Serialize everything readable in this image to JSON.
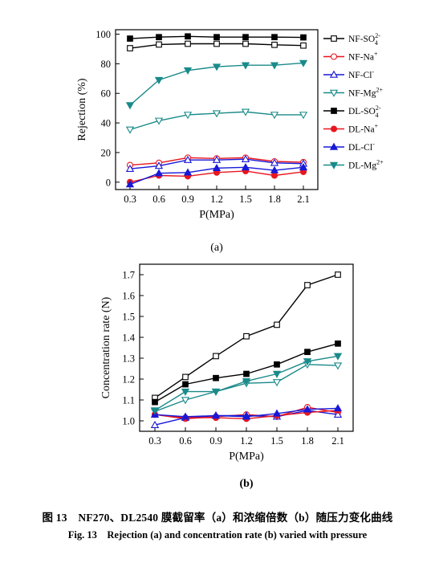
{
  "chart_data": [
    {
      "type": "line",
      "panel_label": "(a)",
      "xlabel": "P(MPa)",
      "ylabel": "Rejection (%)",
      "x": [
        0.3,
        0.6,
        0.9,
        1.2,
        1.5,
        1.8,
        2.1
      ],
      "x_ticks": [
        "0.3",
        "0.6",
        "0.9",
        "1.2",
        "1.5",
        "1.8",
        "2.1"
      ],
      "xlim": [
        0.15,
        2.25
      ],
      "ylim": [
        -5,
        103
      ],
      "y_ticks": [
        "0",
        "20",
        "40",
        "60",
        "80",
        "100"
      ],
      "legend_position": "right-outside",
      "series": [
        {
          "name": "NF-SO",
          "sup": "2-",
          "sub": "4",
          "color": "#000000",
          "marker": "square",
          "filled": false,
          "values": [
            90.5,
            93.0,
            93.5,
            93.5,
            93.5,
            92.8,
            92.3
          ]
        },
        {
          "name": "NF-Na",
          "sup": "+",
          "sub": "",
          "color": "#e8171f",
          "marker": "circle",
          "filled": false,
          "values": [
            11.5,
            13.0,
            16.5,
            16.0,
            16.5,
            14.0,
            13.5
          ]
        },
        {
          "name": "NF-Cl",
          "sup": "-",
          "sub": "",
          "color": "#1818d8",
          "marker": "triangle-up",
          "filled": false,
          "values": [
            9.0,
            11.0,
            15.0,
            15.0,
            15.5,
            13.0,
            12.5
          ]
        },
        {
          "name": "NF-Mg",
          "sup": "2+",
          "sub": "",
          "color": "#1a8a8a",
          "marker": "triangle-down",
          "filled": false,
          "values": [
            35.5,
            41.5,
            45.5,
            46.5,
            47.5,
            45.5,
            45.5
          ]
        },
        {
          "name": "DL-SO",
          "sup": "2-",
          "sub": "4",
          "color": "#000000",
          "marker": "square",
          "filled": true,
          "values": [
            97.0,
            98.0,
            98.5,
            98.0,
            98.0,
            98.0,
            97.8
          ]
        },
        {
          "name": "DL-Na",
          "sup": "+",
          "sub": "",
          "color": "#e8171f",
          "marker": "circle",
          "filled": true,
          "values": [
            0.0,
            4.5,
            4.0,
            6.5,
            7.5,
            4.5,
            7.0
          ]
        },
        {
          "name": "DL-Cl",
          "sup": "-",
          "sub": "",
          "color": "#1818d8",
          "marker": "triangle-up",
          "filled": true,
          "values": [
            -1.5,
            6.0,
            6.5,
            9.5,
            10.0,
            8.0,
            10.0
          ]
        },
        {
          "name": "DL-Mg",
          "sup": "2+",
          "sub": "",
          "color": "#1a8a8a",
          "marker": "triangle-down",
          "filled": true,
          "values": [
            52.0,
            69.0,
            75.5,
            78.0,
            79.0,
            79.0,
            80.5
          ]
        }
      ]
    },
    {
      "type": "line",
      "panel_label": "(b)",
      "xlabel": "P(MPa)",
      "ylabel": "Concentration rate (N)",
      "x": [
        0.3,
        0.6,
        0.9,
        1.2,
        1.5,
        1.8,
        2.1
      ],
      "x_ticks": [
        "0.3",
        "0.6",
        "0.9",
        "1.2",
        "1.5",
        "1.8",
        "2.1"
      ],
      "xlim": [
        0.15,
        2.25
      ],
      "ylim": [
        0.95,
        1.75
      ],
      "y_ticks": [
        "1.0",
        "1.1",
        "1.2",
        "1.3",
        "1.4",
        "1.5",
        "1.6",
        "1.7"
      ],
      "series": [
        {
          "color": "#000000",
          "marker": "square",
          "filled": false,
          "values": [
            1.11,
            1.21,
            1.31,
            1.405,
            1.46,
            1.65,
            1.7
          ]
        },
        {
          "color": "#e8171f",
          "marker": "circle",
          "filled": false,
          "values": [
            1.03,
            1.01,
            1.02,
            1.03,
            1.02,
            1.065,
            1.04
          ]
        },
        {
          "color": "#1818d8",
          "marker": "triangle-up",
          "filled": false,
          "values": [
            0.98,
            1.015,
            1.025,
            1.025,
            1.02,
            1.05,
            1.03
          ]
        },
        {
          "color": "#1a8a8a",
          "marker": "triangle-down",
          "filled": false,
          "values": [
            1.045,
            1.1,
            1.14,
            1.18,
            1.185,
            1.27,
            1.265
          ]
        },
        {
          "color": "#000000",
          "marker": "square",
          "filled": true,
          "values": [
            1.09,
            1.175,
            1.205,
            1.225,
            1.27,
            1.33,
            1.37
          ]
        },
        {
          "color": "#e8171f",
          "marker": "circle",
          "filled": true,
          "values": [
            1.03,
            1.015,
            1.015,
            1.01,
            1.025,
            1.04,
            1.05
          ]
        },
        {
          "color": "#1818d8",
          "marker": "triangle-up",
          "filled": true,
          "values": [
            1.03,
            1.02,
            1.025,
            1.02,
            1.035,
            1.055,
            1.06
          ]
        },
        {
          "color": "#1a8a8a",
          "marker": "triangle-down",
          "filled": true,
          "values": [
            1.05,
            1.14,
            1.14,
            1.19,
            1.225,
            1.285,
            1.31
          ]
        }
      ]
    }
  ],
  "caption": {
    "chinese": "图 13　NF270、DL2540 膜截留率（a）和浓缩倍数（b）随压力变化曲线",
    "english": "Fig. 13　Rejection (a) and concentration rate (b) varied with pressure"
  }
}
